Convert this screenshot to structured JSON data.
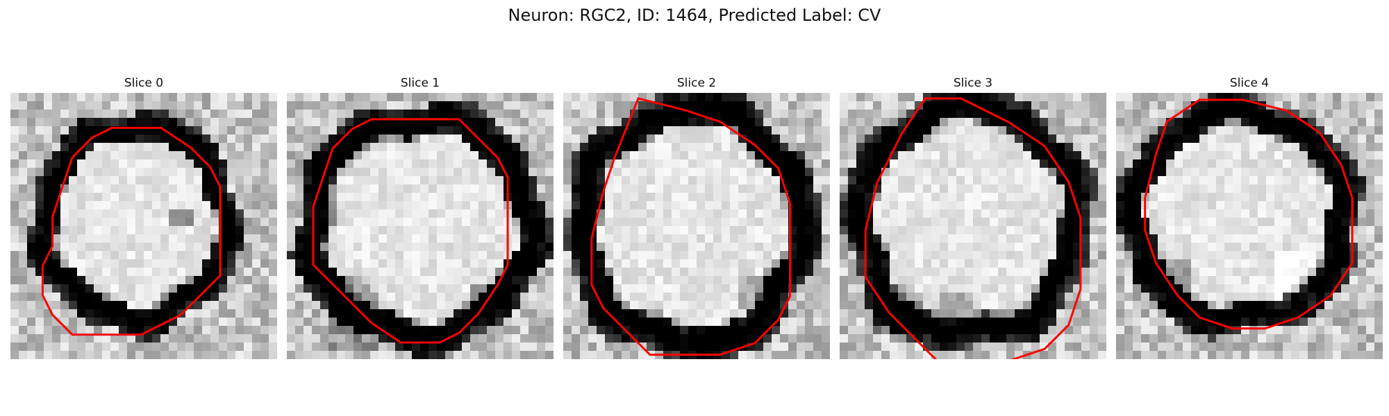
{
  "figure": {
    "title": "Neuron: RGC2, ID: 1464, Predicted Label: CV"
  },
  "colors": {
    "contour": "#ff0000",
    "background": "#ffffff"
  },
  "panels": [
    {
      "title": "Slice 0"
    },
    {
      "title": "Slice 1"
    },
    {
      "title": "Slice 2"
    },
    {
      "title": "Slice 3"
    },
    {
      "title": "Slice 4"
    }
  ]
}
